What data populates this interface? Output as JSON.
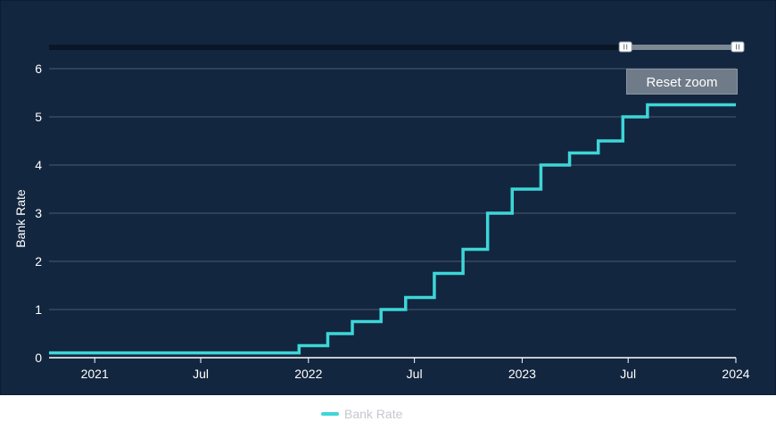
{
  "colors": {
    "background": "#13263f",
    "series": "#3dd6d8",
    "gridline": "#4c5b6e",
    "navigator_track": "#0a1626",
    "navigator_selection": "#7d8894",
    "reset_button": "#6f7b89"
  },
  "reset_zoom_label": "Reset zoom",
  "chart_data": {
    "type": "line",
    "step": true,
    "ylabel": "Bank Rate",
    "ylim": [
      0,
      6
    ],
    "yticks": [
      0,
      1,
      2,
      3,
      4,
      5,
      6
    ],
    "xlim": [
      "2020-10-15",
      "2024-01-01"
    ],
    "xticks": [
      {
        "date": "2021-01-01",
        "label": "2021"
      },
      {
        "date": "2021-07-01",
        "label": "Jul"
      },
      {
        "date": "2022-01-01",
        "label": "2022"
      },
      {
        "date": "2022-07-01",
        "label": "Jul"
      },
      {
        "date": "2023-01-01",
        "label": "2023"
      },
      {
        "date": "2023-07-01",
        "label": "Jul"
      },
      {
        "date": "2024-01-01",
        "label": "2024"
      }
    ],
    "grid": true,
    "legend": "bottom-center",
    "navigator": {
      "selection": [
        "2023-07-01",
        "2024-01-01"
      ]
    },
    "series": [
      {
        "name": "Bank Rate",
        "points": [
          [
            "2020-10-15",
            0.1
          ],
          [
            "2021-12-16",
            0.25
          ],
          [
            "2022-02-03",
            0.5
          ],
          [
            "2022-03-17",
            0.75
          ],
          [
            "2022-05-05",
            1.0
          ],
          [
            "2022-06-16",
            1.25
          ],
          [
            "2022-08-04",
            1.75
          ],
          [
            "2022-09-22",
            2.25
          ],
          [
            "2022-11-03",
            3.0
          ],
          [
            "2022-12-15",
            3.5
          ],
          [
            "2023-02-02",
            4.0
          ],
          [
            "2023-03-23",
            4.25
          ],
          [
            "2023-05-11",
            4.5
          ],
          [
            "2023-06-22",
            5.0
          ],
          [
            "2023-08-03",
            5.25
          ],
          [
            "2024-01-01",
            5.25
          ]
        ]
      }
    ]
  }
}
